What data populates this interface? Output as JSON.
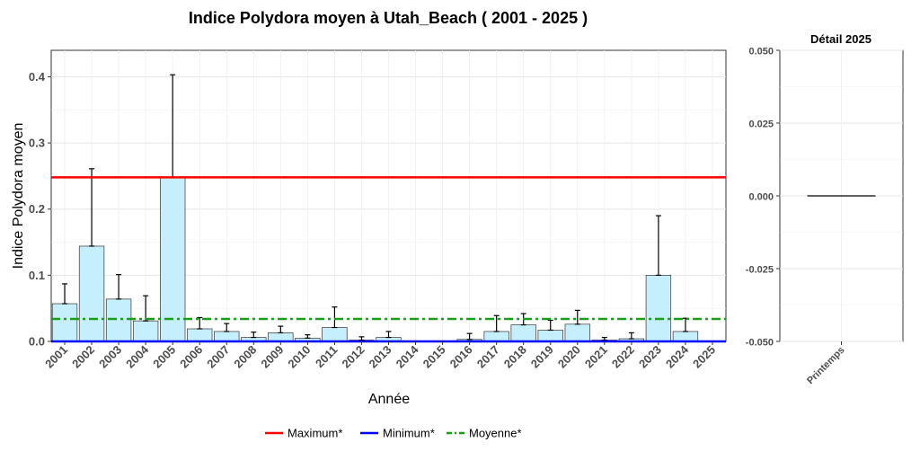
{
  "chart_data": [
    {
      "type": "bar",
      "title": "Indice Polydora moyen à Utah_Beach ( 2001 - 2025 )",
      "xlabel": "Année",
      "ylabel": "Indice Polydora moyen",
      "ylim": [
        0,
        0.44
      ],
      "yticks": [
        "0.0",
        "0.1",
        "0.2",
        "0.3",
        "0.4"
      ],
      "grid": true,
      "categories": [
        "2001",
        "2002",
        "2003",
        "2004",
        "2005",
        "2006",
        "2007",
        "2008",
        "2009",
        "2010",
        "2011",
        "2012",
        "2013",
        "2014",
        "2015",
        "2016",
        "2017",
        "2018",
        "2019",
        "2020",
        "2021",
        "2022",
        "2023",
        "2024",
        "2025"
      ],
      "values": [
        0.057,
        0.144,
        0.064,
        0.031,
        0.248,
        0.019,
        0.015,
        0.006,
        0.013,
        0.005,
        0.021,
        0.002,
        0.006,
        0,
        0,
        0.003,
        0.015,
        0.025,
        0.017,
        0.026,
        0.002,
        0.004,
        0.1,
        0.015,
        0
      ],
      "error_upper": [
        0.087,
        0.261,
        0.101,
        0.069,
        0.403,
        0.036,
        0.027,
        0.014,
        0.023,
        0.01,
        0.052,
        0.007,
        0.015,
        0,
        0,
        0.012,
        0.039,
        0.042,
        0.032,
        0.047,
        0.006,
        0.013,
        0.19,
        0.035,
        0
      ],
      "bar_color": "#c6effd",
      "reference_lines": [
        {
          "name": "Maximum*",
          "value": 0.248,
          "color": "#ff0000",
          "style": "solid"
        },
        {
          "name": "Minimum*",
          "value": 0.0,
          "color": "#0000ff",
          "style": "solid"
        },
        {
          "name": "Moyenne*",
          "value": 0.034,
          "color": "#1a9e1a",
          "style": "dashdot"
        }
      ],
      "legend_position": "bottom"
    },
    {
      "type": "line",
      "title": "Détail 2025",
      "categories": [
        "Printemps"
      ],
      "values": [
        0
      ],
      "ylim": [
        -0.05,
        0.05
      ],
      "yticks": [
        "0.050",
        "0.025",
        "0.000",
        "-0.025",
        "-0.050"
      ],
      "grid": true
    }
  ]
}
